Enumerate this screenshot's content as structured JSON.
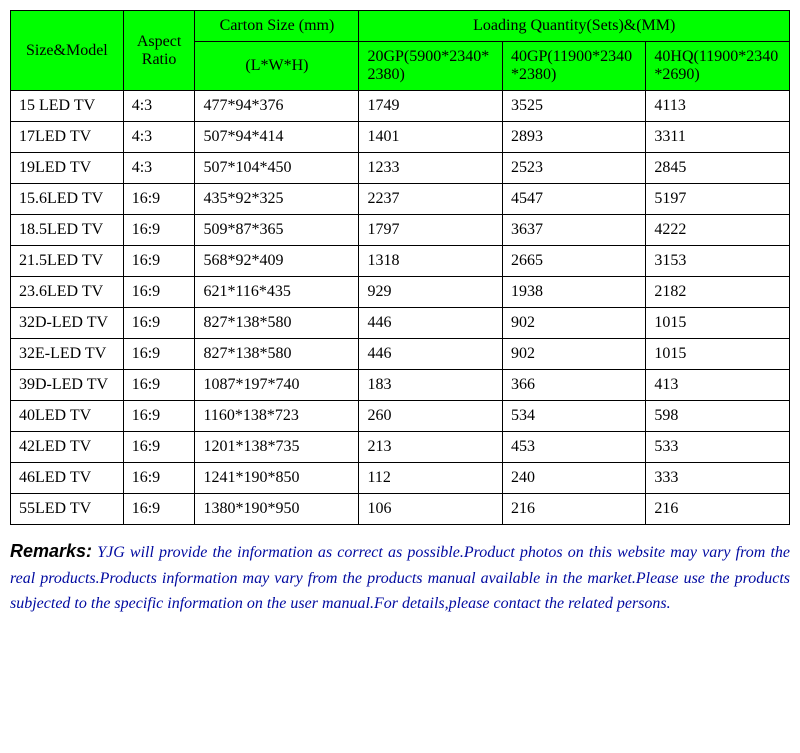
{
  "table": {
    "header": {
      "size_model": "Size&Model",
      "aspect_ratio": "Aspect Ratio",
      "carton_size": "Carton Size (mm)",
      "carton_size_sub": "(L*W*H)",
      "loading_qty": "Loading Quantity(Sets)&(MM)",
      "q1": "20GP(5900*2340*2380)",
      "q2": "40GP(11900*2340*2380)",
      "q3": "40HQ(11900*2340*2690)"
    },
    "rows": [
      {
        "size": "15 LED TV",
        "ratio": "4:3",
        "carton": "477*94*376",
        "q1": "1749",
        "q2": "3525",
        "q3": "4113"
      },
      {
        "size": "17LED TV",
        "ratio": "4:3",
        "carton": "507*94*414",
        "q1": "1401",
        "q2": "2893",
        "q3": "3311"
      },
      {
        "size": "19LED TV",
        "ratio": "4:3",
        "carton": "507*104*450",
        "q1": "1233",
        "q2": "2523",
        "q3": "2845"
      },
      {
        "size": "15.6LED TV",
        "ratio": "16:9",
        "carton": "435*92*325",
        "q1": "2237",
        "q2": "4547",
        "q3": "5197"
      },
      {
        "size": "18.5LED TV",
        "ratio": "16:9",
        "carton": "509*87*365",
        "q1": "1797",
        "q2": "3637",
        "q3": "4222"
      },
      {
        "size": "21.5LED TV",
        "ratio": "16:9",
        "carton": "568*92*409",
        "q1": "1318",
        "q2": "2665",
        "q3": "3153"
      },
      {
        "size": "23.6LED TV",
        "ratio": "16:9",
        "carton": "621*116*435",
        "q1": "929",
        "q2": "1938",
        "q3": "2182"
      },
      {
        "size": "32D-LED TV",
        "ratio": "16:9",
        "carton": "827*138*580",
        "q1": "446",
        "q2": "902",
        "q3": "1015"
      },
      {
        "size": "32E-LED TV",
        "ratio": "16:9",
        "carton": "827*138*580",
        "q1": "446",
        "q2": "902",
        "q3": "1015"
      },
      {
        "size": "39D-LED TV",
        "ratio": "16:9",
        "carton": "1087*197*740",
        "q1": "183",
        "q2": "366",
        "q3": "413"
      },
      {
        "size": "40LED TV",
        "ratio": "16:9",
        "carton": "1160*138*723",
        "q1": "260",
        "q2": "534",
        "q3": "598"
      },
      {
        "size": "42LED TV",
        "ratio": "16:9",
        "carton": "1201*138*735",
        "q1": "213",
        "q2": "453",
        "q3": "533"
      },
      {
        "size": "46LED TV",
        "ratio": "16:9",
        "carton": "1241*190*850",
        "q1": "112",
        "q2": "240",
        "q3": "333"
      },
      {
        "size": "55LED TV",
        "ratio": "16:9",
        "carton": "1380*190*950",
        "q1": "106",
        "q2": "216",
        "q3": "216"
      }
    ]
  },
  "remarks": {
    "label": "Remarks:",
    "text": " YJG will provide the information as correct as possible.Product photos on this website may vary from the real products.Products information may vary from the products manual available in the market.Please use the products subjected to the specific information on the user manual.For details,please contact the related persons."
  },
  "styling": {
    "header_bg": "#00ff00",
    "border_color": "#000000",
    "text_color": "#000000",
    "remarks_color": "#000aa0",
    "font_family": "Times New Roman",
    "font_size_pt": 12,
    "remarks_label_font": "Arial",
    "remarks_font_style": "italic"
  }
}
